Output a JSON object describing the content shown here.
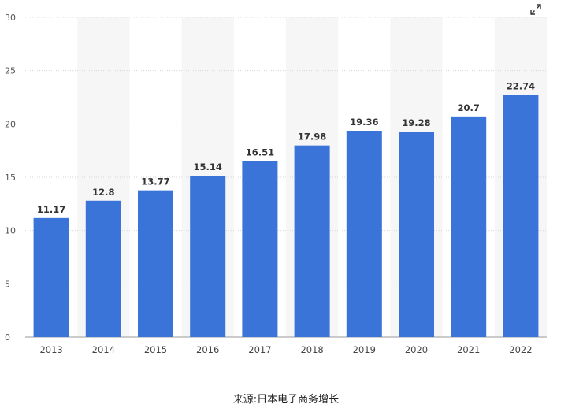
{
  "chart_data": {
    "type": "bar",
    "categories": [
      "2013",
      "2014",
      "2015",
      "2016",
      "2017",
      "2018",
      "2019",
      "2020",
      "2021",
      "2022"
    ],
    "values": [
      11.17,
      12.8,
      13.77,
      15.14,
      16.51,
      17.98,
      19.36,
      19.28,
      20.7,
      22.74
    ],
    "value_labels": [
      "11.17",
      "12.8",
      "13.77",
      "15.14",
      "16.51",
      "17.98",
      "19.36",
      "19.28",
      "20.7",
      "22.74"
    ],
    "y_ticks": [
      "0",
      "5",
      "10",
      "15",
      "20",
      "25",
      "30"
    ],
    "ylim": [
      0,
      30
    ],
    "title": "",
    "xlabel": "",
    "ylabel": "",
    "grid": true,
    "bar_color": "#3a74d8",
    "band_color": "#f6f6f6"
  },
  "source_caption": "来源:日本电子商务增长",
  "icons": {
    "expand": "expand-arrows-icon"
  }
}
